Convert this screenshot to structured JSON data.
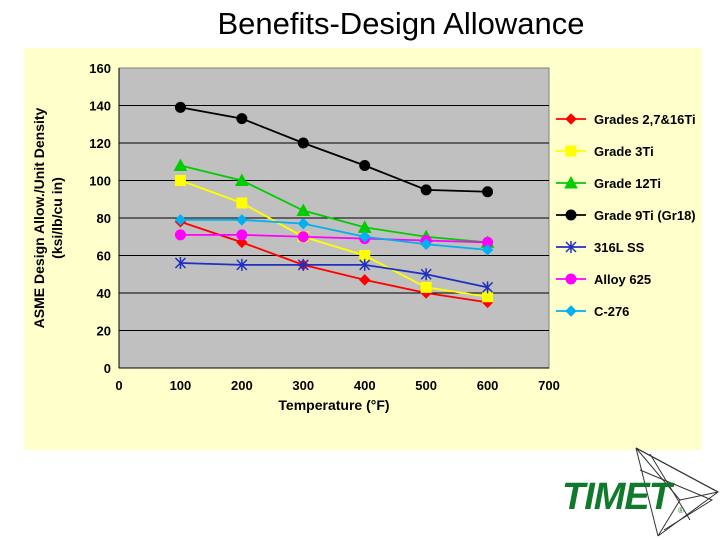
{
  "slide": {
    "title": "Benefits-Design Allowance"
  },
  "logo": {
    "text": "TIMET",
    "mark": "®",
    "color": "#0f7a2c"
  },
  "chart_data": {
    "type": "line",
    "title": "Benefits-Design Allowance",
    "xlabel": "Temperature (°F)",
    "ylabel_line1": "ASME Design Allow./Unit Density",
    "ylabel_line2": "(ksi/lb/cu in)",
    "xlim": [
      0,
      700
    ],
    "ylim": [
      0,
      160
    ],
    "xticks": [
      0,
      100,
      200,
      300,
      400,
      500,
      600,
      700
    ],
    "yticks": [
      0,
      20,
      40,
      60,
      80,
      100,
      120,
      140,
      160
    ],
    "grid": "horizontal",
    "legend_position": "right",
    "plot_background": "#c0c0c0",
    "panel_background": "#ffffcc",
    "series": [
      {
        "name": "Grades 2,7&16Ti",
        "color": "#ff0000",
        "marker": "diamond",
        "x": [
          100,
          200,
          300,
          400,
          500,
          600
        ],
        "y": [
          78,
          67,
          55,
          47,
          40,
          35
        ]
      },
      {
        "name": "Grade 3Ti",
        "color": "#ffff00",
        "marker": "square",
        "x": [
          100,
          200,
          300,
          400,
          500,
          600
        ],
        "y": [
          100,
          88,
          70,
          60,
          43,
          38
        ]
      },
      {
        "name": "Grade 12Ti",
        "color": "#00cc00",
        "marker": "triangle",
        "x": [
          100,
          200,
          300,
          400,
          500,
          600
        ],
        "y": [
          108,
          100,
          84,
          75,
          70,
          67
        ]
      },
      {
        "name": "Grade 9Ti (Gr18)",
        "color": "#000000",
        "marker": "circle",
        "x": [
          100,
          200,
          300,
          400,
          500,
          600
        ],
        "y": [
          139,
          133,
          120,
          108,
          95,
          94
        ]
      },
      {
        "name": "316L SS",
        "color": "#1f2fbf",
        "marker": "star",
        "x": [
          100,
          200,
          300,
          400,
          500,
          600
        ],
        "y": [
          56,
          55,
          55,
          55,
          50,
          43
        ]
      },
      {
        "name": "Alloy 625",
        "color": "#ff00ff",
        "marker": "circle",
        "x": [
          100,
          200,
          300,
          400,
          500,
          600
        ],
        "y": [
          71,
          71,
          70,
          69,
          68,
          67
        ]
      },
      {
        "name": "C-276",
        "color": "#00b0f0",
        "marker": "diamond",
        "x": [
          100,
          200,
          300,
          400,
          500,
          600
        ],
        "y": [
          79,
          79,
          77,
          70,
          66,
          63
        ]
      }
    ]
  }
}
